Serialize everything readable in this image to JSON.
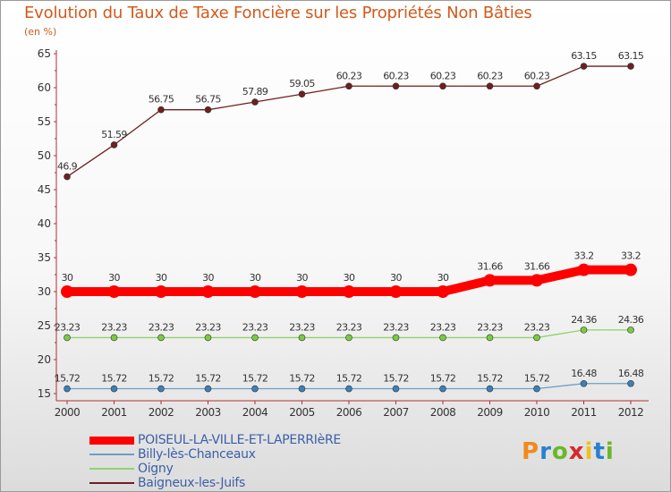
{
  "chart_data": {
    "type": "line",
    "title": "Evolution du Taux de Taxe Foncière sur les Propriétés Non Bâties",
    "unit_label": "(en %)",
    "categories": [
      "2000",
      "2001",
      "2002",
      "2003",
      "2004",
      "2005",
      "2006",
      "2007",
      "2008",
      "2009",
      "2010",
      "2011",
      "2012"
    ],
    "ylim": [
      15,
      65
    ],
    "yticks": [
      15,
      20,
      25,
      30,
      35,
      40,
      45,
      50,
      55,
      60,
      65
    ],
    "series": [
      {
        "name": "Baigneux-les-Juifs",
        "color": "#6e1f1f",
        "dot": "#6e1f1f",
        "values": [
          46.9,
          51.59,
          56.75,
          56.75,
          57.89,
          59.05,
          60.23,
          60.23,
          60.23,
          60.23,
          60.23,
          63.15,
          63.15
        ],
        "labels": [
          "46.9",
          "51.59",
          "56.75",
          "56.75",
          "57.89",
          "59.05",
          "60.23",
          "60.23",
          "60.23",
          "60.23",
          "60.23",
          "63.15",
          "63.15"
        ]
      },
      {
        "name": "POISEUL-LA-VILLE-ET-LAPERRIèRE",
        "color": "#ff0000",
        "dot": "#ff0000",
        "values": [
          30,
          30,
          30,
          30,
          30,
          30,
          30,
          30,
          30,
          31.66,
          31.66,
          33.2,
          33.2
        ],
        "labels": [
          "30",
          "30",
          "30",
          "30",
          "30",
          "30",
          "30",
          "30",
          "30",
          "31.66",
          "31.66",
          "33.2",
          "33.2"
        ]
      },
      {
        "name": "Oigny",
        "color": "#8fd36a",
        "dot": "#7acc3f",
        "values": [
          23.23,
          23.23,
          23.23,
          23.23,
          23.23,
          23.23,
          23.23,
          23.23,
          23.23,
          23.23,
          23.23,
          24.36,
          24.36
        ],
        "labels": [
          "23.23",
          "23.23",
          "23.23",
          "23.23",
          "23.23",
          "23.23",
          "23.23",
          "23.23",
          "23.23",
          "23.23",
          "23.23",
          "24.36",
          "24.36"
        ]
      },
      {
        "name": "Billy-lès-Chanceaux",
        "color": "#6b9ec8",
        "dot": "#3d7fb8",
        "values": [
          15.72,
          15.72,
          15.72,
          15.72,
          15.72,
          15.72,
          15.72,
          15.72,
          15.72,
          15.72,
          15.72,
          16.48,
          16.48
        ],
        "labels": [
          "15.72",
          "15.72",
          "15.72",
          "15.72",
          "15.72",
          "15.72",
          "15.72",
          "15.72",
          "15.72",
          "15.72",
          "15.72",
          "16.48",
          "16.48"
        ]
      }
    ],
    "legend_order": [
      1,
      3,
      2,
      0
    ]
  },
  "logo": {
    "text": "Proxiti"
  }
}
